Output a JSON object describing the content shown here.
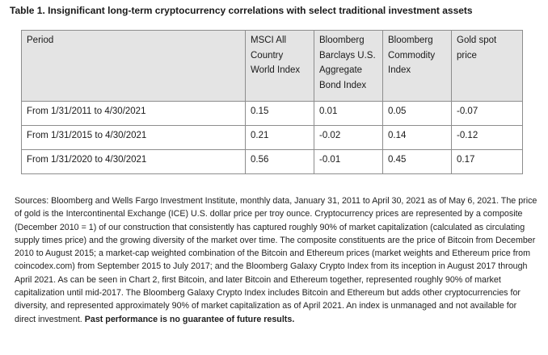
{
  "title": "Table 1. Insignificant long-term cryptocurrency correlations with select traditional investment assets",
  "table": {
    "headers": [
      "Period",
      "MSCI All Country World Index",
      "Bloomberg Barclays U.S. Aggregate Bond Index",
      "Bloomberg Commodity Index",
      "Gold spot price"
    ],
    "rows": [
      [
        "From 1/31/2011 to 4/30/2021",
        "0.15",
        "0.01",
        "0.05",
        "-0.07"
      ],
      [
        "From 1/31/2015 to 4/30/2021",
        "0.21",
        "-0.02",
        "0.14",
        "-0.12"
      ],
      [
        "From 1/31/2020 to 4/30/2021",
        "0.56",
        "-0.01",
        "0.45",
        "0.17"
      ]
    ]
  },
  "footnote": {
    "text": "Sources: Bloomberg and Wells Fargo Investment Institute, monthly data, January 31, 2011 to April 30, 2021 as of May 6, 2021. The price of gold is the Intercontinental Exchange (ICE) U.S. dollar price per troy ounce. Cryptocurrency prices are represented by a composite (December 2010 = 1) of our construction that consistently has captured roughly 90% of market capitalization (calculated as circulating supply times price) and the growing diversity of the market over time. The composite constituents are the price of Bitcoin from December 2010 to August 2015; a market-cap weighted combination of the Bitcoin and Ethereum prices (market weights and Ethereum price from coincodex.com) from September 2015 to July 2017; and the Bloomberg Galaxy Crypto Index from its inception in August 2017 through April 2021. As can be seen in Chart 2, first Bitcoin, and later Bitcoin and Ethereum together, represented roughly 90% of market capitalization until mid-2017. The Bloomberg Galaxy Crypto Index includes Bitcoin and Ethereum but adds other cryptocurrencies for diversity, and represented approximately 90% of market capitalization as of April 2021. An index is unmanaged and not available for direct investment.",
    "disclaimer": "Past performance is no guarantee of future results."
  }
}
